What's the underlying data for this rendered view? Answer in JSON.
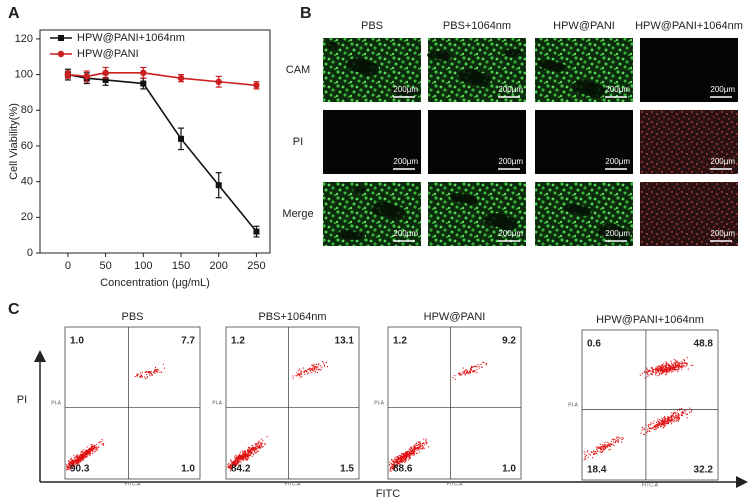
{
  "chart_data": [
    {
      "type": "line",
      "panel": "A",
      "x_label": "Concentration (μg/mL)",
      "y_label": "Cell Viability(%)",
      "x": [
        0,
        25,
        50,
        100,
        150,
        200,
        250
      ],
      "xlim": [
        -37,
        268
      ],
      "xticks": [
        0,
        50,
        100,
        150,
        200,
        250
      ],
      "ylim": [
        0,
        125
      ],
      "yticks": [
        0,
        20,
        40,
        60,
        80,
        100,
        120
      ],
      "legend": "upper-left",
      "series": [
        {
          "name": "HPW@PANI+1064nm",
          "color": "#111111",
          "marker": "square",
          "values": [
            100,
            98,
            97,
            95,
            64,
            38,
            12
          ],
          "errors": [
            3,
            3,
            3,
            3,
            6,
            7,
            3
          ]
        },
        {
          "name": "HPW@PANI",
          "color": "#cc1f1f",
          "marker": "circle",
          "values": [
            100,
            99,
            101,
            101,
            98,
            96,
            94
          ],
          "errors": [
            2,
            3,
            3,
            3,
            2,
            3,
            2
          ]
        }
      ]
    }
  ],
  "panel_b": {
    "label": "B",
    "columns": [
      "PBS",
      "PBS+1064nm",
      "HPW@PANI",
      "HPW@PANI+1064nm"
    ],
    "rows": [
      "CAM",
      "PI",
      "Merge"
    ],
    "scale_bar": "200μm"
  },
  "panel_c": {
    "label": "C",
    "y_label": "PI",
    "x_label": "FITC",
    "plot_x_label": "FITC-A",
    "plot_y_label": "PI-A",
    "plots": [
      {
        "title": "PBS",
        "quadrants": [
          "1.0",
          "7.7",
          "90.3",
          "1.0"
        ]
      },
      {
        "title": "PBS+1064nm",
        "quadrants": [
          "1.2",
          "13.1",
          "84.2",
          "1.5"
        ]
      },
      {
        "title": "HPW@PANI",
        "quadrants": [
          "1.2",
          "9.2",
          "88.6",
          "1.0"
        ]
      },
      {
        "title": "HPW@PANI+1064nm",
        "quadrants": [
          "0.6",
          "48.8",
          "18.4",
          "32.2"
        ]
      }
    ]
  }
}
